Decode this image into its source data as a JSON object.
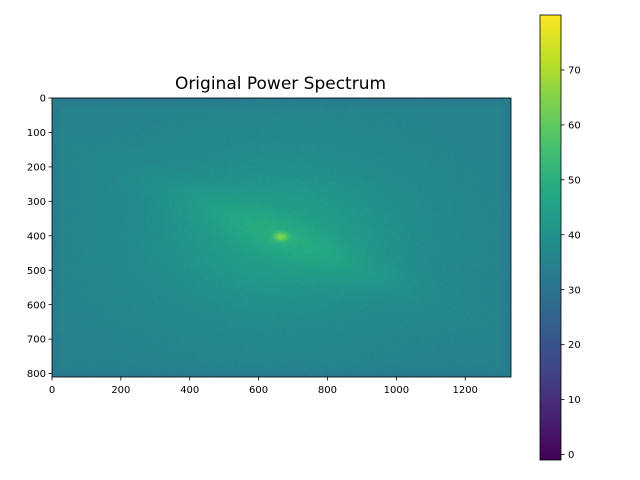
{
  "chart_data": {
    "type": "heatmap",
    "title": "Original Power Spectrum",
    "xlabel": "",
    "ylabel": "",
    "image_extent": {
      "x": [
        0,
        1333
      ],
      "y": [
        0,
        810
      ]
    },
    "xlim": [
      0,
      1333
    ],
    "ylim": [
      810,
      0
    ],
    "y_axis_inverted": true,
    "x_ticks": [
      0,
      200,
      400,
      600,
      800,
      1000,
      1200
    ],
    "x_tick_labels": [
      "0",
      "200",
      "400",
      "600",
      "800",
      "1000",
      "1200"
    ],
    "y_ticks": [
      0,
      100,
      200,
      300,
      400,
      500,
      600,
      700,
      800
    ],
    "y_tick_labels": [
      "0",
      "100",
      "200",
      "300",
      "400",
      "500",
      "600",
      "700",
      "800"
    ],
    "colormap": "viridis",
    "colorbar": {
      "vmin": -1,
      "vmax": 80,
      "ticks": [
        0,
        10,
        20,
        30,
        40,
        50,
        60,
        70
      ],
      "tick_labels": [
        "0",
        "10",
        "20",
        "30",
        "40",
        "50",
        "60",
        "70"
      ]
    },
    "field": {
      "background_value": 33,
      "edge_value": 31,
      "center": [
        665,
        403
      ],
      "center_value": 60,
      "halo_value": 43,
      "streak_direction_deg": 35,
      "streak_value": 41
    },
    "grid": false,
    "legend": "none"
  }
}
